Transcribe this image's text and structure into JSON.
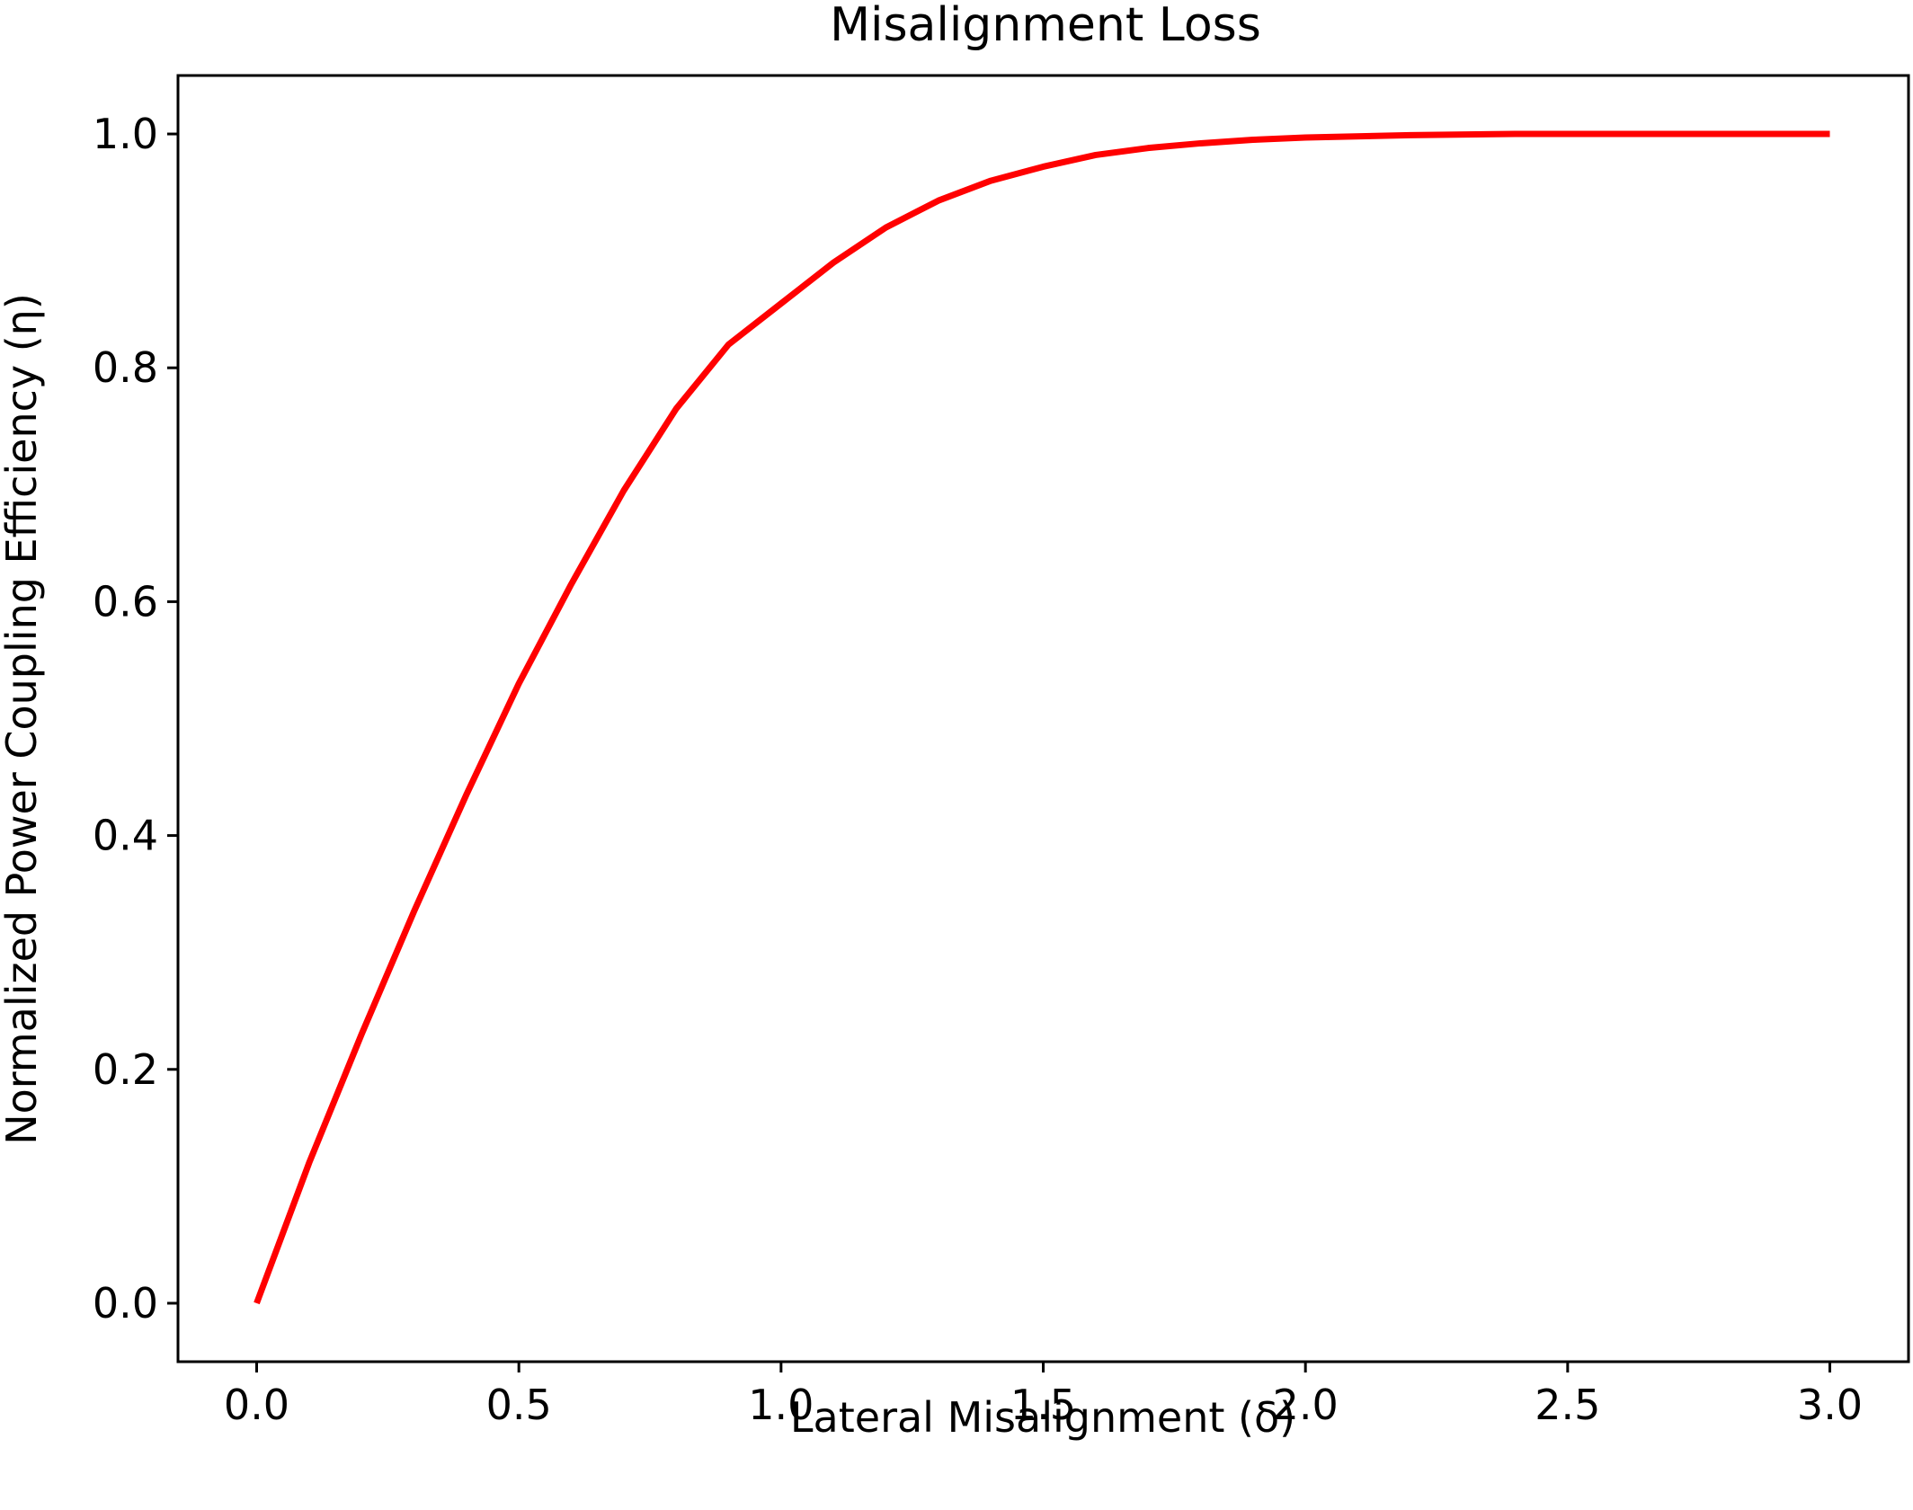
{
  "chart_data": {
    "type": "line",
    "title": "Misalignment Loss",
    "xlabel": "Lateral Misalignment (δ)",
    "ylabel": "Normalized Power Coupling Efficiency (η)",
    "xlim": [
      -0.15,
      3.15
    ],
    "ylim": [
      -0.05,
      1.05
    ],
    "xticks": [
      0.0,
      0.5,
      1.0,
      1.5,
      2.0,
      2.5,
      3.0
    ],
    "xtick_labels": [
      "0.0",
      "0.5",
      "1.0",
      "1.5",
      "2.0",
      "2.5",
      "3.0"
    ],
    "yticks": [
      0.0,
      0.2,
      0.4,
      0.6,
      0.8,
      1.0
    ],
    "ytick_labels": [
      "0.0",
      "0.2",
      "0.4",
      "0.6",
      "0.8",
      "1.0"
    ],
    "grid": false,
    "series": [
      {
        "color": "#ff0000",
        "x": [
          0.0,
          0.1,
          0.2,
          0.3,
          0.4,
          0.5,
          0.6,
          0.7,
          0.8,
          0.9,
          1.0,
          1.1,
          1.2,
          1.3,
          1.4,
          1.5,
          1.6,
          1.7,
          1.8,
          1.9,
          2.0,
          2.2,
          2.4,
          2.6,
          2.8,
          3.0
        ],
        "y": [
          0.0,
          0.12,
          0.23,
          0.335,
          0.435,
          0.53,
          0.615,
          0.695,
          0.765,
          0.82,
          0.855,
          0.89,
          0.92,
          0.943,
          0.96,
          0.972,
          0.982,
          0.988,
          0.992,
          0.995,
          0.997,
          0.999,
          1.0,
          1.0,
          1.0,
          1.0
        ]
      }
    ]
  }
}
